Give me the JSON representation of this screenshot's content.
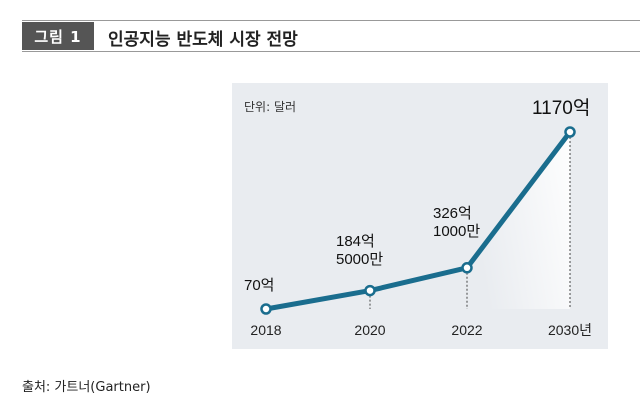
{
  "figure": {
    "label": "그림 1",
    "title": "인공지능 반도체 시장 전망",
    "source": "출처: 가트너(Gartner)"
  },
  "colors": {
    "line": "#1a6d8e",
    "panel": "#e9ecf0",
    "label_box": "#555555"
  },
  "chart_data": {
    "type": "line",
    "title": "인공지능 반도체 시장 전망",
    "unit_label": "단위: 달러",
    "x": [
      2018,
      2020,
      2022,
      2030
    ],
    "x_tick_labels": [
      "2018",
      "2020",
      "2022",
      "2030년"
    ],
    "series": [
      {
        "name": "인공지능 반도체 시장",
        "values": [
          7000000000,
          18450000000,
          32610000000,
          117000000000
        ]
      }
    ],
    "data_labels": [
      [
        "70억"
      ],
      [
        "184억",
        "5000만"
      ],
      [
        "326억",
        "1000만"
      ],
      [
        "1170억"
      ]
    ],
    "ylim": [
      0,
      117000000000
    ],
    "grid": false
  }
}
